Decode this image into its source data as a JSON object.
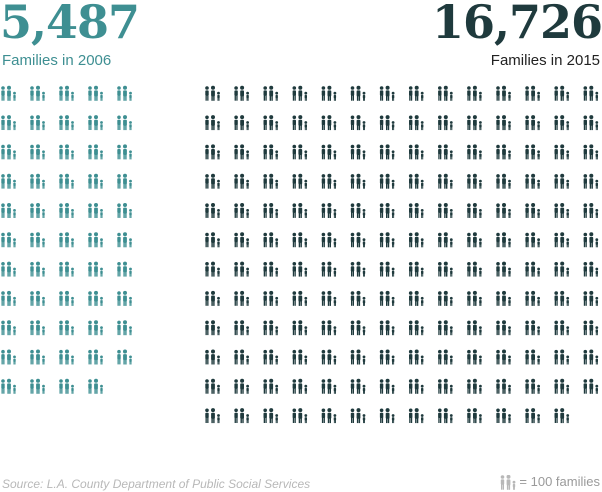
{
  "chart_data": {
    "type": "pictogram",
    "unit_value": 100,
    "series": [
      {
        "name": "Families in 2006",
        "value": 5487,
        "label": "5,487",
        "color": "#3e8f92"
      },
      {
        "name": "Families in 2015",
        "value": 16726,
        "label": "16,726",
        "color": "#1f3a3d"
      }
    ]
  },
  "source": "Source: L.A. County Department of Public Social Services",
  "legend": {
    "text": "= 100 families",
    "icon": "family-icon",
    "color": "#b8b8b8"
  }
}
